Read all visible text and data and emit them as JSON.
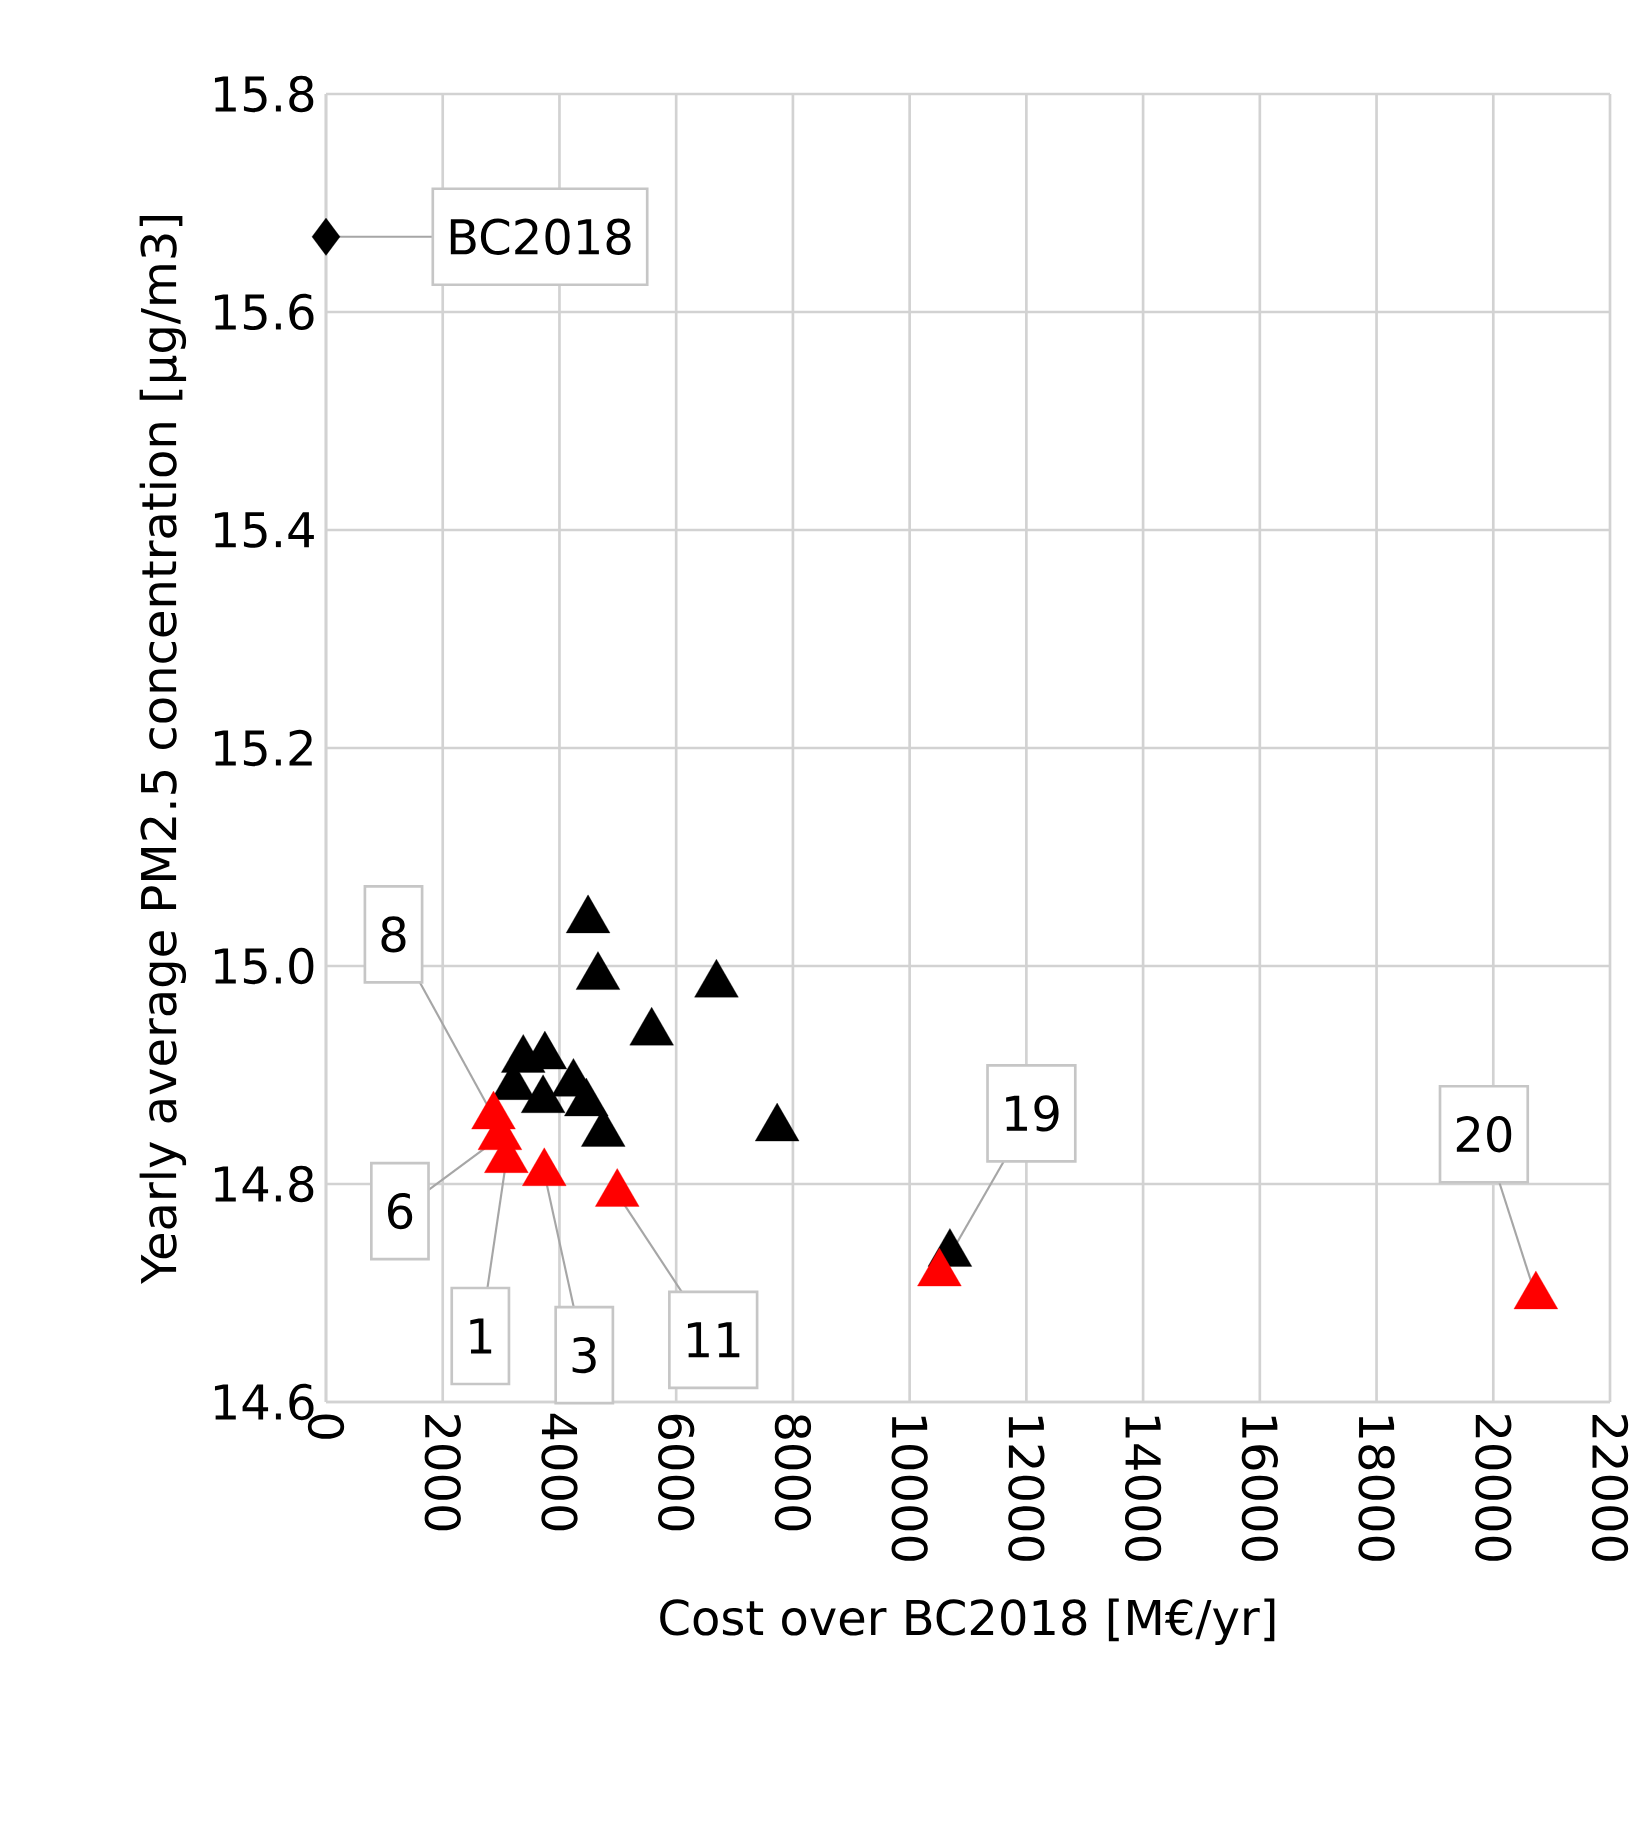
{
  "chart_data": {
    "type": "scatter",
    "xlabel": "Cost over BC2018 [M€/yr]",
    "ylabel": "Yearly average PM2.5 concentration [µg/m3]",
    "series": [
      {
        "color": "#000000",
        "marker": "diamond",
        "x": [
          0
        ],
        "values": [
          15.669
        ]
      },
      {
        "color": "#000000",
        "marker": "triangle",
        "x": [
          4490,
          4660,
          6690,
          5580,
          7730,
          3380,
          3750,
          4240,
          4460,
          4750,
          3720,
          3210,
          10690
        ],
        "values": [
          15.042,
          14.99,
          14.983,
          14.939,
          14.851,
          14.914,
          14.917,
          14.892,
          14.874,
          14.846,
          14.877,
          14.889,
          14.736
        ]
      },
      {
        "color": "#ff0000",
        "marker": "triangle",
        "x": [
          2870,
          2980,
          3090,
          3740,
          4990,
          10510,
          20730
        ],
        "values": [
          14.862,
          14.843,
          14.822,
          14.81,
          14.791,
          14.718,
          14.697
        ]
      }
    ],
    "annotations": [
      {
        "text": "BC2018",
        "x": 0,
        "y": 15.669
      },
      {
        "text": "8",
        "x": 2870,
        "y": 14.862
      },
      {
        "text": "6",
        "x": 2980,
        "y": 14.843
      },
      {
        "text": "1",
        "x": 3090,
        "y": 14.822
      },
      {
        "text": "3",
        "x": 3740,
        "y": 14.81
      },
      {
        "text": "11",
        "x": 4990,
        "y": 14.791
      },
      {
        "text": "19",
        "x": 10510,
        "y": 14.718
      },
      {
        "text": "20",
        "x": 20730,
        "y": 14.697
      }
    ],
    "xlim": [
      0,
      22000
    ],
    "ylim": [
      14.6,
      15.8
    ],
    "xticks": [
      0,
      2000,
      4000,
      6000,
      8000,
      10000,
      12000,
      14000,
      16000,
      18000,
      20000,
      22000
    ],
    "yticks": [
      {
        "value": 14.6,
        "label": "14.6"
      },
      {
        "value": 14.8,
        "label": "14.8"
      },
      {
        "value": 15.0,
        "label": "15.0"
      },
      {
        "value": 15.2,
        "label": "15.2"
      },
      {
        "value": 15.4,
        "label": "15.4"
      },
      {
        "value": 15.6,
        "label": "15.6"
      },
      {
        "value": 15.8,
        "label": "15.8"
      }
    ],
    "grid": true
  }
}
